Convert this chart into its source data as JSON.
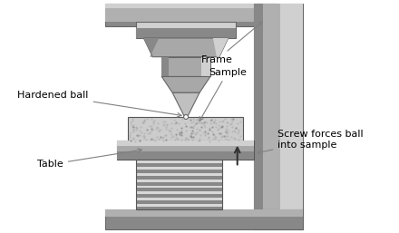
{
  "bg_color": "#ffffff",
  "frame_gray": "#b0b0b0",
  "frame_dark": "#888888",
  "frame_light": "#d0d0d0",
  "indenter_gray": "#a8a8a8",
  "sample_fill": "#c8c8c8",
  "table_dark": "#888888",
  "spring_light": "#e0e0e0",
  "spring_dark": "#909090",
  "labels": {
    "hardened_ball": "Hardened ball",
    "frame": "Frame",
    "sample": "Sample",
    "table": "Table",
    "screw": "Screw forces ball\ninto sample"
  },
  "label_fontsize": 8,
  "arrow_color": "#808080",
  "figsize": [
    4.4,
    2.57
  ],
  "dpi": 100
}
